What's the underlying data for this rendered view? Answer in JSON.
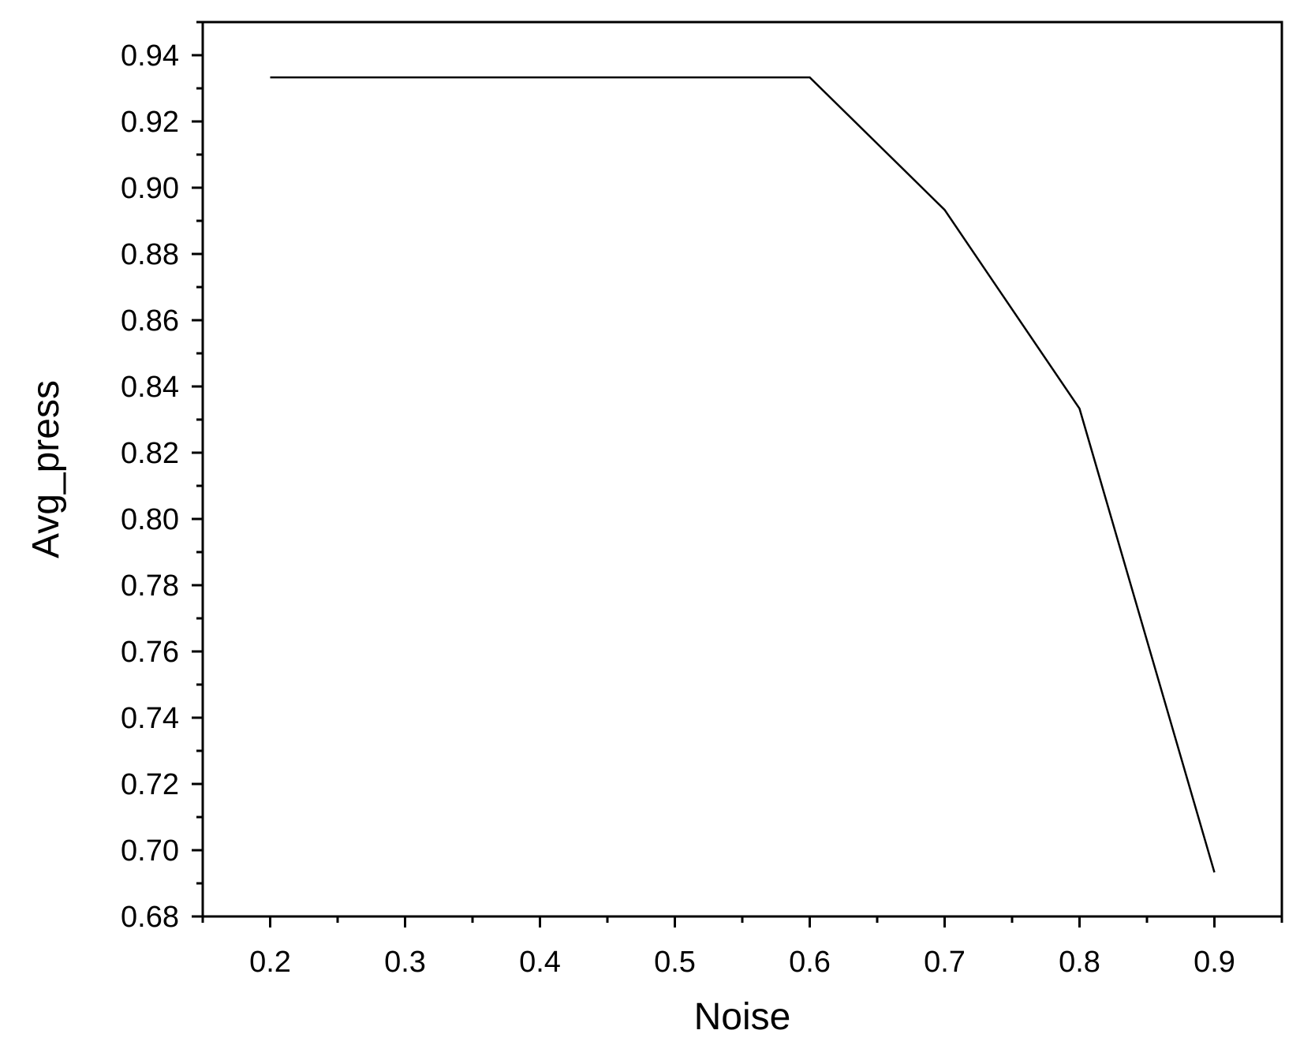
{
  "chart_data": {
    "type": "line",
    "title": "",
    "xlabel": "Noise",
    "ylabel": "Avg_press",
    "xlim": [
      0.15,
      0.95
    ],
    "ylim": [
      0.68,
      0.95
    ],
    "x_ticks": [
      "0.2",
      "0.3",
      "0.4",
      "0.5",
      "0.6",
      "0.7",
      "0.8",
      "0.9"
    ],
    "y_ticks": [
      "0.68",
      "0.70",
      "0.72",
      "0.74",
      "0.76",
      "0.78",
      "0.80",
      "0.82",
      "0.84",
      "0.86",
      "0.88",
      "0.90",
      "0.92",
      "0.94"
    ],
    "grid": false,
    "legend": "none",
    "series": [
      {
        "x": [
          0.2,
          0.3,
          0.4,
          0.5,
          0.6,
          0.7,
          0.8,
          0.9
        ],
        "values": [
          0.9333,
          0.9333,
          0.9333,
          0.9333,
          0.9333,
          0.8933,
          0.8333,
          0.6933
        ],
        "color": "#000000"
      }
    ]
  }
}
